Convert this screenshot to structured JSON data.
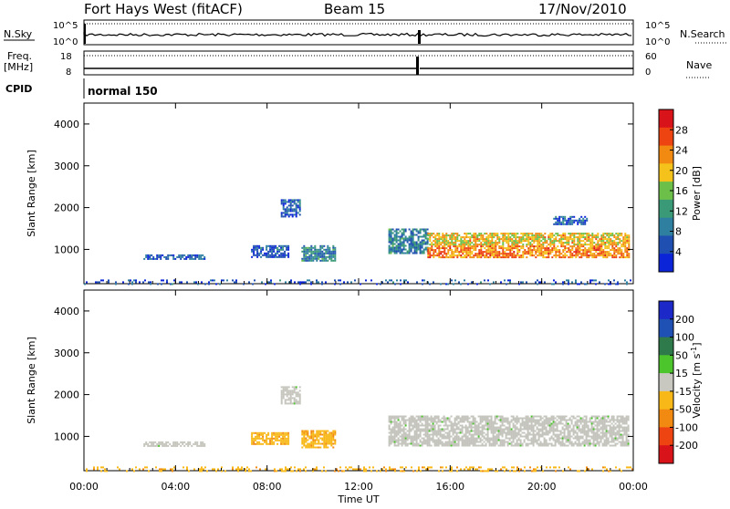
{
  "header": {
    "title": "Fort Hays West (fitACF)",
    "beam": "Beam 15",
    "date": "17/Nov/2010"
  },
  "status_panels": {
    "nsky_label": "N.Sky",
    "nsky_ticks": [
      "10^5",
      "10^0"
    ],
    "nsearch_label": "N.Search",
    "nsearch_ticks": [
      "10^5",
      "10^0"
    ],
    "freq_label": "Freq.",
    "freq_unit": "[MHz]",
    "freq_ticks": [
      "18",
      "8"
    ],
    "nave_label": "Nave",
    "nave_ticks": [
      "60",
      "0"
    ],
    "cpid_label": "CPID",
    "cpid_value": "normal 150"
  },
  "colors": {
    "power_scale": [
      "#0b24d8",
      "#1f4fb0",
      "#2e7fa0",
      "#3a9a77",
      "#6cc04a",
      "#f4c21a",
      "#f28a12",
      "#ee4412",
      "#d9131a"
    ],
    "velocity_scale": [
      "#d9131a",
      "#ee4412",
      "#f28a12",
      "#f8b818",
      "#c8c8c0",
      "#4cc42c",
      "#2e7a4a",
      "#1f50b4",
      "#1c28c8"
    ],
    "ground_scatter": "#c4c4bc"
  },
  "chart_data": [
    {
      "type": "heatmap",
      "id": "power",
      "ylabel": "Slant Range [km]",
      "xlabel": "Time UT",
      "x_ticks": [
        "00:00",
        "04:00",
        "08:00",
        "12:00",
        "16:00",
        "20:00",
        "00:00"
      ],
      "xlim_hours": [
        0,
        24
      ],
      "y_ticks": [
        1000,
        2000,
        3000,
        4000
      ],
      "ylim_km": [
        180,
        4500
      ],
      "colorbar": {
        "label": "Power [dB]",
        "ticks": [
          "4",
          "8",
          "12",
          "16",
          "20",
          "24",
          "28"
        ],
        "range": [
          0,
          30
        ]
      },
      "echo_regions": [
        {
          "t0": 2.6,
          "t1": 5.3,
          "r0": 780,
          "r1": 880,
          "level": 1
        },
        {
          "t0": 7.3,
          "t1": 8.9,
          "r0": 800,
          "r1": 1100,
          "level": 1
        },
        {
          "t0": 9.5,
          "t1": 11.0,
          "r0": 750,
          "r1": 1100,
          "level": 2
        },
        {
          "t0": 8.6,
          "t1": 9.4,
          "r0": 1800,
          "r1": 2200,
          "level": 1
        },
        {
          "t0": 13.3,
          "t1": 15.0,
          "r0": 900,
          "r1": 1500,
          "level": 2
        },
        {
          "t0": 15.0,
          "t1": 23.8,
          "r0": 800,
          "r1": 1400,
          "level": 5
        },
        {
          "t0": 20.5,
          "t1": 22.0,
          "r0": 1600,
          "r1": 1800,
          "level": 1
        },
        {
          "t0": 0.0,
          "t1": 24.0,
          "r0": 180,
          "r1": 280,
          "level": 1
        }
      ]
    },
    {
      "type": "heatmap",
      "id": "velocity",
      "ylabel": "Slant Range [km]",
      "xlabel": "Time UT",
      "x_ticks": [
        "00:00",
        "04:00",
        "08:00",
        "12:00",
        "16:00",
        "20:00",
        "00:00"
      ],
      "xlim_hours": [
        0,
        24
      ],
      "y_ticks": [
        1000,
        2000,
        3000,
        4000
      ],
      "ylim_km": [
        180,
        4500
      ],
      "colorbar": {
        "label": "Velocity [m s",
        "label_sup": "-1",
        "label_end": "]",
        "ticks": [
          "200",
          "100",
          "50",
          "15",
          "-15",
          "-50",
          "-100",
          "-200"
        ],
        "range": [
          -250,
          250
        ]
      },
      "echo_regions": [
        {
          "t0": 2.6,
          "t1": 5.3,
          "r0": 780,
          "r1": 880,
          "kind": "ground"
        },
        {
          "t0": 7.3,
          "t1": 8.9,
          "r0": 800,
          "r1": 1100,
          "kind": "negative"
        },
        {
          "t0": 9.5,
          "t1": 11.0,
          "r0": 750,
          "r1": 1150,
          "kind": "negative"
        },
        {
          "t0": 8.6,
          "t1": 9.4,
          "r0": 1800,
          "r1": 2200,
          "kind": "ground"
        },
        {
          "t0": 13.3,
          "t1": 23.8,
          "r0": 800,
          "r1": 1500,
          "kind": "ground"
        },
        {
          "t0": 0.0,
          "t1": 24.0,
          "r0": 180,
          "r1": 280,
          "kind": "negative"
        }
      ]
    }
  ]
}
